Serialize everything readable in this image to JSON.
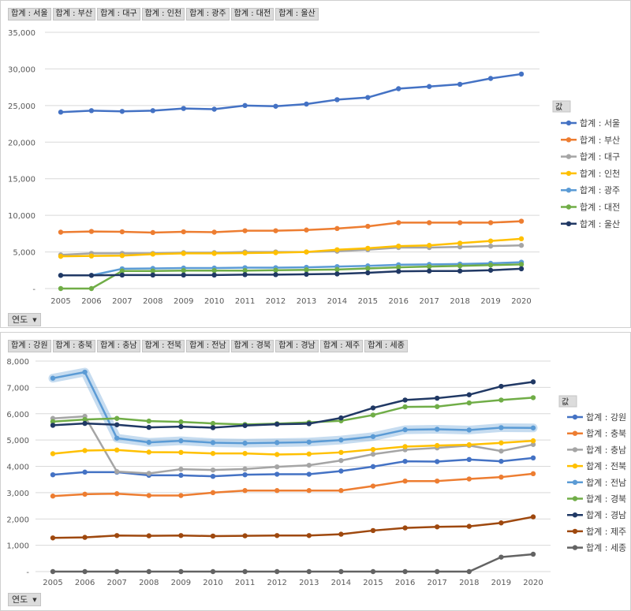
{
  "chart_data": [
    {
      "type": "line",
      "title": "",
      "xlabel": "",
      "ylabel": "",
      "x": [
        "2005",
        "2006",
        "2007",
        "2008",
        "2009",
        "2010",
        "2011",
        "2012",
        "2013",
        "2014",
        "2015",
        "2016",
        "2017",
        "2018",
        "2019",
        "2020"
      ],
      "ylim": [
        0,
        35000
      ],
      "yticks": [
        "-",
        "5,000",
        "10,000",
        "15,000",
        "20,000",
        "25,000",
        "30,000",
        "35,000"
      ],
      "yticks_values": [
        0,
        5000,
        10000,
        15000,
        20000,
        25000,
        30000,
        35000
      ],
      "grid": true,
      "legend_position": "right",
      "legend_title": "값",
      "field_buttons": [
        "합계 : 서울",
        "합계 : 부산",
        "합계 : 대구",
        "합계 : 인천",
        "합계 : 광주",
        "합계 : 대전",
        "합계 : 울산"
      ],
      "axis_button": "연도",
      "series": [
        {
          "name": "합계 : 서울",
          "color": "#4472C4",
          "values": [
            24100,
            24300,
            24200,
            24300,
            24600,
            24500,
            25000,
            24900,
            25200,
            25800,
            26100,
            27300,
            27600,
            27900,
            28700,
            29300
          ]
        },
        {
          "name": "합계 : 부산",
          "color": "#ED7D31",
          "values": [
            7700,
            7800,
            7750,
            7650,
            7750,
            7700,
            7900,
            7900,
            8000,
            8200,
            8500,
            9000,
            9000,
            9000,
            9000,
            9200
          ]
        },
        {
          "name": "합계 : 대구",
          "color": "#A5A5A5",
          "values": [
            4600,
            4800,
            4800,
            4800,
            4900,
            4900,
            5000,
            5000,
            5000,
            5100,
            5300,
            5600,
            5600,
            5700,
            5800,
            5900
          ]
        },
        {
          "name": "합계 : 인천",
          "color": "#FFC000",
          "values": [
            4400,
            4450,
            4500,
            4700,
            4800,
            4800,
            4850,
            4900,
            5000,
            5300,
            5500,
            5800,
            5900,
            6200,
            6500,
            6800
          ]
        },
        {
          "name": "합계 : 광주",
          "color": "#5B9BD5",
          "values": [
            1800,
            1800,
            2700,
            2750,
            2800,
            2800,
            2850,
            2850,
            2900,
            3000,
            3100,
            3250,
            3300,
            3350,
            3450,
            3600
          ]
        },
        {
          "name": "합계 : 대전",
          "color": "#70AD47",
          "values": [
            0,
            0,
            2400,
            2400,
            2450,
            2450,
            2450,
            2500,
            2550,
            2600,
            2750,
            2900,
            3000,
            3100,
            3200,
            3300
          ]
        },
        {
          "name": "합계 : 울산",
          "color": "#203864",
          "values": [
            1800,
            1800,
            1850,
            1850,
            1850,
            1850,
            1900,
            1900,
            1950,
            2000,
            2150,
            2350,
            2400,
            2400,
            2500,
            2700
          ]
        }
      ]
    },
    {
      "type": "line",
      "title": "",
      "xlabel": "",
      "ylabel": "",
      "x": [
        "2005",
        "2006",
        "2007",
        "2008",
        "2009",
        "2010",
        "2011",
        "2012",
        "2013",
        "2014",
        "2015",
        "2016",
        "2017",
        "2018",
        "2019",
        "2020"
      ],
      "ylim": [
        0,
        8000
      ],
      "yticks": [
        "-",
        "1,000",
        "2,000",
        "3,000",
        "4,000",
        "5,000",
        "6,000",
        "7,000",
        "8,000"
      ],
      "yticks_values": [
        0,
        1000,
        2000,
        3000,
        4000,
        5000,
        6000,
        7000,
        8000
      ],
      "grid": true,
      "legend_position": "right",
      "legend_title": "값",
      "field_buttons": [
        "합계 : 강원",
        "합계 : 충북",
        "합계 : 충남",
        "합계 : 전북",
        "합계 : 전남",
        "합계 : 경북",
        "합계 : 경남",
        "합계 : 제주",
        "합계 : 세종"
      ],
      "axis_button": "연도",
      "series": [
        {
          "name": "합계 : 강원",
          "color": "#4472C4",
          "values": [
            3680,
            3780,
            3780,
            3660,
            3660,
            3620,
            3680,
            3700,
            3700,
            3820,
            3990,
            4190,
            4180,
            4260,
            4190,
            4320
          ]
        },
        {
          "name": "합계 : 충북",
          "color": "#ED7D31",
          "values": [
            2870,
            2940,
            2960,
            2890,
            2890,
            3000,
            3080,
            3080,
            3080,
            3080,
            3250,
            3440,
            3440,
            3520,
            3590,
            3720
          ]
        },
        {
          "name": "합계 : 충남",
          "color": "#A5A5A5",
          "values": [
            5820,
            5900,
            3800,
            3730,
            3890,
            3860,
            3900,
            3980,
            4040,
            4220,
            4460,
            4630,
            4700,
            4790,
            4580,
            4830
          ]
        },
        {
          "name": "합계 : 전북",
          "color": "#FFC000",
          "values": [
            4480,
            4600,
            4620,
            4540,
            4530,
            4490,
            4490,
            4450,
            4470,
            4530,
            4640,
            4750,
            4790,
            4820,
            4890,
            4970
          ]
        },
        {
          "name": "합계 : 전남",
          "color": "#5B9BD5",
          "values": [
            7350,
            7580,
            5070,
            4910,
            4970,
            4900,
            4880,
            4900,
            4920,
            5000,
            5130,
            5390,
            5410,
            5380,
            5470,
            5460
          ]
        },
        {
          "name": "합계 : 경북",
          "color": "#70AD47",
          "values": [
            5700,
            5780,
            5820,
            5720,
            5690,
            5630,
            5590,
            5620,
            5670,
            5730,
            5950,
            6260,
            6270,
            6410,
            6520,
            6610
          ]
        },
        {
          "name": "합계 : 경남",
          "color": "#203864",
          "values": [
            5560,
            5630,
            5580,
            5480,
            5510,
            5470,
            5550,
            5600,
            5620,
            5840,
            6220,
            6520,
            6590,
            6720,
            7040,
            7210
          ]
        },
        {
          "name": "합계 : 제주",
          "color": "#9E480E",
          "values": [
            1280,
            1300,
            1370,
            1360,
            1370,
            1350,
            1360,
            1370,
            1370,
            1420,
            1560,
            1660,
            1700,
            1720,
            1850,
            2080
          ]
        },
        {
          "name": "합계 : 세종",
          "color": "#636363",
          "values": [
            0,
            0,
            0,
            0,
            0,
            0,
            0,
            0,
            0,
            0,
            0,
            0,
            0,
            0,
            550,
            660
          ]
        }
      ]
    }
  ]
}
